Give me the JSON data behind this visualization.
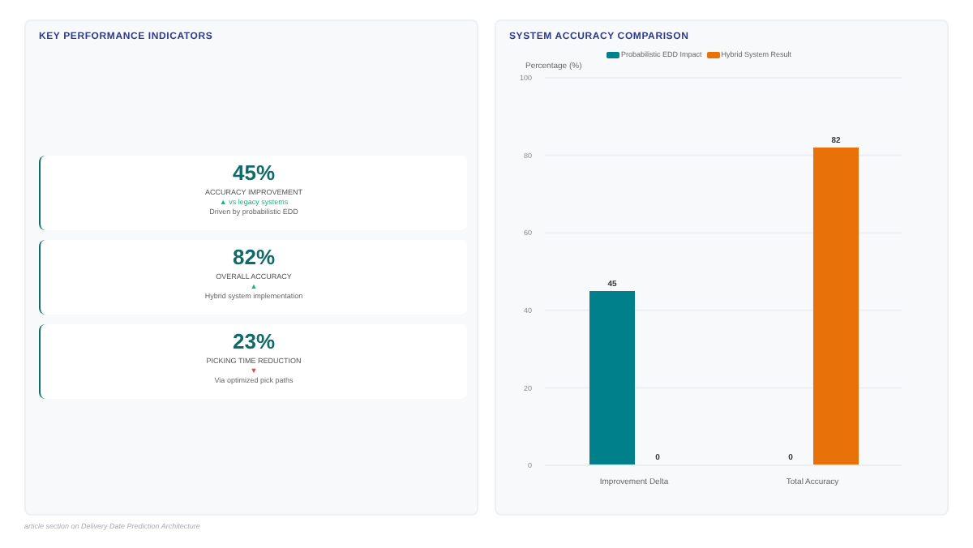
{
  "chart_data": [
    {
      "type": "other",
      "title": "KEY PERFORMANCE INDICATORS",
      "annotations": [
        "45%",
        "ACCURACY IMPROVEMENT",
        "▲ vs legacy systems",
        "Driven by probabilistic EDD",
        "82%",
        "OVERALL ACCURACY",
        "▲",
        "Hybrid system implementation",
        "23%",
        "PICKING TIME REDUCTION",
        "▼",
        "Via optimized pick paths",
        "article section on Delivery Date Prediction Architecture"
      ],
      "colors": [
        "#10b981",
        "#10b981",
        "#ef4444"
      ]
    },
    {
      "type": "bar",
      "title": "SYSTEM ACCURACY COMPARISON",
      "ylabel": "Percentage (%)",
      "categories": [
        "Improvement Delta",
        "Total Accuracy"
      ],
      "series": [
        {
          "name": "Probabilistic EDD Impact",
          "color": "#00808a",
          "values": [
            45,
            0
          ]
        },
        {
          "name": "Hybrid System Result",
          "color": "#e8710a",
          "values": [
            0,
            82
          ]
        }
      ],
      "ylim": [
        0,
        100
      ],
      "yticks": [
        0,
        20,
        40,
        60,
        80,
        100
      ],
      "grid": "y",
      "legend": "top",
      "data_labels": true
    }
  ]
}
